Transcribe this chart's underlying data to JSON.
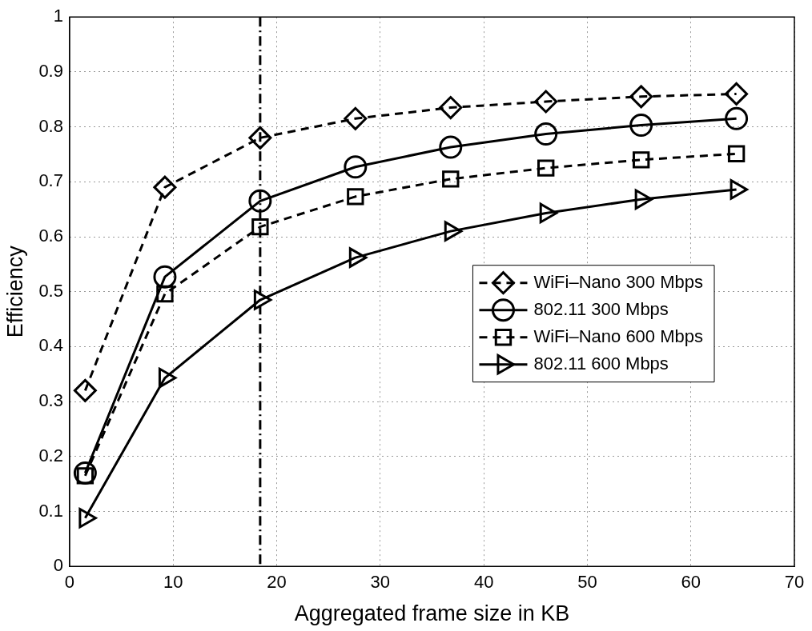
{
  "chart_data": {
    "type": "line",
    "xlabel": "Aggregated frame size in KB",
    "ylabel": "Efficiency",
    "x": [
      1.5,
      9.2,
      18.4,
      27.6,
      36.8,
      46,
      55.2,
      64.4
    ],
    "series": [
      {
        "name": "WiFi–Nano 300 Mbps",
        "color": "#000000",
        "marker": "diamond",
        "line_style": "dashed",
        "values": [
          0.32,
          0.69,
          0.78,
          0.815,
          0.835,
          0.846,
          0.855,
          0.86
        ]
      },
      {
        "name": "802.11 300 Mbps",
        "color": "#000000",
        "marker": "circle",
        "line_style": "solid",
        "values": [
          0.17,
          0.527,
          0.665,
          0.727,
          0.763,
          0.787,
          0.803,
          0.815
        ]
      },
      {
        "name": "WiFi–Nano 600 Mbps",
        "color": "#000000",
        "marker": "square",
        "line_style": "dashed",
        "values": [
          0.165,
          0.496,
          0.618,
          0.673,
          0.705,
          0.725,
          0.74,
          0.751
        ]
      },
      {
        "name": "802.11 600 Mbps",
        "color": "#000000",
        "marker": "triangle",
        "line_style": "solid",
        "values": [
          0.088,
          0.343,
          0.485,
          0.562,
          0.61,
          0.643,
          0.668,
          0.686
        ]
      }
    ],
    "ref_lines": [
      {
        "axis": "x",
        "value": 18.4,
        "line_style": "dashdot",
        "color": "#000000"
      }
    ],
    "xlim": [
      0,
      70
    ],
    "xticks": [
      0,
      10,
      20,
      30,
      40,
      50,
      60,
      70
    ],
    "ylim": [
      0,
      1
    ],
    "yticks": [
      0,
      {
        "value": 0.1,
        "label": "0.1"
      },
      {
        "value": 0.2,
        "label": "0.2"
      },
      {
        "value": 0.3,
        "label": "0.3"
      },
      {
        "value": 0.4,
        "label": "0.4"
      },
      {
        "value": 0.5,
        "label": "0.5"
      },
      {
        "value": 0.6,
        "label": "0.6"
      },
      {
        "value": 0.7,
        "label": "0.7"
      },
      {
        "value": 0.8,
        "label": "0.8"
      },
      {
        "value": 0.9,
        "label": "0.9"
      },
      1
    ],
    "grid": true,
    "legend": "right"
  }
}
